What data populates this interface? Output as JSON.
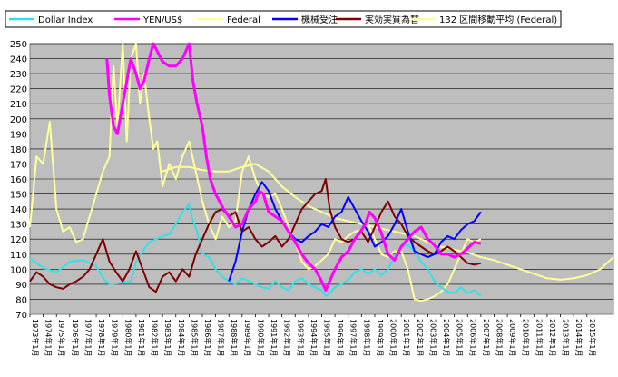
{
  "chart_data": {
    "type": "line",
    "title": "",
    "xlabel": "",
    "ylabel": "",
    "ylim": [
      70,
      250
    ],
    "xlim": [
      1973.0,
      2017.0
    ],
    "yticks": [
      70,
      80,
      90,
      100,
      110,
      120,
      130,
      140,
      150,
      160,
      170,
      180,
      190,
      200,
      210,
      220,
      230,
      240,
      250
    ],
    "x_tick_labels": [
      "1973年1月",
      "1974年1月",
      "1975年1月",
      "1976年1月",
      "1977年1月",
      "1978年1月",
      "1979年1月",
      "1980年1月",
      "1981年1月",
      "1982年1月",
      "1983年1月",
      "1984年1月",
      "1985年1月",
      "1986年1月",
      "1987年1月",
      "1988年1月",
      "1989年1月",
      "1990年1月",
      "1991年1月",
      "1992年1月",
      "1993年1月",
      "1994年1月",
      "1995年1月",
      "1996年1月",
      "1997年1月",
      "1998年1月",
      "1999年1月",
      "2000年1月",
      "2001年1月",
      "2002年1月",
      "2003年1月",
      "2004年1月",
      "2005年1月",
      "2006年1月",
      "2007年1月",
      "2008年1月",
      "2009年1月",
      "2010年1月",
      "2011年1月",
      "2012年1月",
      "2013年1月",
      "2014年1月",
      "2015年1月"
    ],
    "grid": true,
    "legend_position": "top",
    "plot_background": "#bebebe",
    "series": [
      {
        "name": "Dollar Index",
        "color": "#33e0e8",
        "width": 2,
        "x": [
          1973.0,
          1974.0,
          1975.0,
          1976.0,
          1977.0,
          1978.0,
          1978.6,
          1979.0,
          1980.0,
          1980.6,
          1981.0,
          1981.5,
          1982.0,
          1982.5,
          1983.0,
          1983.5,
          1984.0,
          1984.5,
          1985.0,
          1985.2,
          1985.6,
          1986.0,
          1986.5,
          1987.0,
          1987.5,
          1988.0,
          1988.5,
          1989.0,
          1989.5,
          1990.0,
          1990.5,
          1991.0,
          1991.5,
          1992.0,
          1992.5,
          1993.0,
          1993.5,
          1994.0,
          1994.5,
          1995.0,
          1995.3,
          1995.6,
          1996.0,
          1996.5,
          1997.0,
          1997.5,
          1998.0,
          1998.5,
          1999.0,
          1999.5,
          2000.0,
          2000.5,
          2001.0,
          2001.5,
          2002.0,
          2002.5,
          2003.0,
          2003.5,
          2004.0,
          2004.5,
          2005.0,
          2005.5,
          2006.0,
          2006.5,
          2007.0
        ],
        "y": [
          107,
          101,
          98,
          105,
          106,
          102,
          93,
          90,
          91,
          92,
          105,
          112,
          118,
          120,
          122,
          123,
          130,
          138,
          143,
          135,
          125,
          110,
          108,
          100,
          95,
          92,
          90,
          94,
          92,
          90,
          88,
          87,
          92,
          88,
          86,
          92,
          94,
          90,
          88,
          86,
          82,
          84,
          88,
          90,
          93,
          98,
          100,
          97,
          100,
          96,
          100,
          108,
          115,
          116,
          112,
          105,
          100,
          92,
          88,
          85,
          84,
          88,
          84,
          86,
          82
        ]
      },
      {
        "name": "YEN/US$",
        "color": "#ff00ff",
        "width": 3,
        "x": [
          1978.8,
          1979.0,
          1979.3,
          1979.6,
          1980.0,
          1980.3,
          1980.6,
          1981.0,
          1981.3,
          1981.6,
          1982.0,
          1982.3,
          1982.6,
          1983.0,
          1983.5,
          1984.0,
          1984.5,
          1985.0,
          1985.3,
          1985.6,
          1986.0,
          1986.3,
          1986.6,
          1987.0,
          1987.3,
          1987.6,
          1988.0,
          1988.5,
          1989.0,
          1989.5,
          1990.0,
          1990.3,
          1990.6,
          1991.0,
          1991.5,
          1992.0,
          1992.5,
          1993.0,
          1993.5,
          1994.0,
          1994.5,
          1995.0,
          1995.3,
          1995.5,
          1996.0,
          1996.5,
          1997.0,
          1997.5,
          1998.0,
          1998.3,
          1998.6,
          1999.0,
          1999.5,
          2000.0,
          2000.5,
          2001.0,
          2001.5,
          2002.0,
          2002.5,
          2003.0,
          2003.5,
          2004.0,
          2004.5,
          2005.0,
          2005.5,
          2006.0,
          2006.5,
          2007.0
        ],
        "y": [
          240,
          215,
          195,
          190,
          210,
          225,
          240,
          230,
          220,
          225,
          240,
          250,
          245,
          238,
          235,
          235,
          240,
          250,
          225,
          210,
          195,
          175,
          160,
          150,
          145,
          140,
          135,
          128,
          130,
          140,
          145,
          152,
          150,
          138,
          135,
          132,
          125,
          118,
          110,
          104,
          100,
          92,
          86,
          90,
          100,
          108,
          112,
          120,
          126,
          130,
          138,
          134,
          124,
          110,
          106,
          115,
          120,
          125,
          128,
          120,
          116,
          110,
          110,
          108,
          110,
          114,
          118,
          117
        ]
      },
      {
        "name": "Federal",
        "color": "#ffff99",
        "width": 2,
        "x": [
          1973.0,
          1973.5,
          1974.0,
          1974.5,
          1975.0,
          1975.5,
          1976.0,
          1976.5,
          1977.0,
          1977.5,
          1978.0,
          1978.5,
          1979.0,
          1979.3,
          1979.6,
          1980.0,
          1980.3,
          1980.6,
          1981.0,
          1981.3,
          1981.6,
          1982.0,
          1982.3,
          1982.6,
          1983.0,
          1983.5,
          1984.0,
          1984.5,
          1985.0,
          1985.5,
          1986.0,
          1986.5,
          1987.0,
          1987.5,
          1988.0,
          1988.5,
          1989.0,
          1989.5,
          1990.0,
          1990.5,
          1991.0,
          1991.5,
          1992.0,
          1992.5,
          1993.0,
          1993.5,
          1994.0,
          1994.5,
          1995.0,
          1995.5,
          1996.0,
          1996.5,
          1997.0,
          1997.5,
          1998.0,
          1998.5,
          1999.0,
          1999.5,
          2000.0,
          2000.5,
          2001.0,
          2001.5,
          2002.0,
          2002.5,
          2003.0,
          2003.5,
          2004.0,
          2004.5,
          2005.0,
          2005.5,
          2006.0,
          2006.5,
          2007.0
        ],
        "y": [
          128,
          175,
          170,
          198,
          140,
          125,
          128,
          118,
          120,
          135,
          150,
          165,
          175,
          235,
          195,
          250,
          185,
          240,
          250,
          210,
          230,
          200,
          180,
          185,
          155,
          170,
          160,
          175,
          185,
          165,
          145,
          130,
          120,
          135,
          128,
          132,
          165,
          175,
          160,
          150,
          148,
          150,
          140,
          128,
          118,
          105,
          100,
          102,
          106,
          110,
          120,
          118,
          122,
          125,
          126,
          130,
          120,
          110,
          108,
          112,
          112,
          100,
          80,
          79,
          80,
          82,
          85,
          90,
          100,
          110,
          120,
          118,
          120
        ]
      },
      {
        "name": "機械受注",
        "color": "#0000ff",
        "width": 2,
        "x": [
          1988.0,
          1988.5,
          1989.0,
          1989.5,
          1990.0,
          1990.5,
          1991.0,
          1991.5,
          1992.0,
          1992.5,
          1993.0,
          1993.5,
          1994.0,
          1994.5,
          1995.0,
          1995.5,
          1996.0,
          1996.5,
          1997.0,
          1997.5,
          1998.0,
          1998.5,
          1999.0,
          1999.5,
          2000.0,
          2000.5,
          2001.0,
          2001.5,
          2002.0,
          2002.5,
          2003.0,
          2003.5,
          2004.0,
          2004.5,
          2005.0,
          2005.5,
          2006.0,
          2006.5,
          2007.0
        ],
        "y": [
          92,
          105,
          125,
          140,
          150,
          158,
          152,
          140,
          132,
          125,
          120,
          118,
          122,
          125,
          130,
          128,
          135,
          138,
          148,
          140,
          132,
          125,
          115,
          118,
          122,
          130,
          140,
          125,
          112,
          110,
          108,
          110,
          118,
          122,
          120,
          126,
          130,
          132,
          138
        ]
      },
      {
        "name": "実効実質為替",
        "color": "#800000",
        "width": 2,
        "x": [
          1973.0,
          1973.5,
          1974.0,
          1974.5,
          1975.0,
          1975.5,
          1976.0,
          1976.5,
          1977.0,
          1977.5,
          1978.0,
          1978.5,
          1979.0,
          1979.5,
          1980.0,
          1980.5,
          1981.0,
          1981.5,
          1982.0,
          1982.5,
          1983.0,
          1983.5,
          1984.0,
          1984.5,
          1985.0,
          1985.5,
          1986.0,
          1986.5,
          1987.0,
          1987.5,
          1988.0,
          1988.5,
          1989.0,
          1989.5,
          1990.0,
          1990.5,
          1991.0,
          1991.5,
          1992.0,
          1992.5,
          1993.0,
          1993.5,
          1994.0,
          1994.5,
          1995.0,
          1995.3,
          1995.6,
          1996.0,
          1996.5,
          1997.0,
          1997.5,
          1998.0,
          1998.5,
          1999.0,
          1999.5,
          2000.0,
          2000.5,
          2001.0,
          2001.5,
          2002.0,
          2002.5,
          2003.0,
          2003.5,
          2004.0,
          2004.5,
          2005.0,
          2005.5,
          2006.0,
          2006.5,
          2007.0
        ],
        "y": [
          92,
          98,
          95,
          90,
          88,
          87,
          90,
          92,
          95,
          100,
          110,
          120,
          105,
          98,
          92,
          100,
          112,
          100,
          88,
          85,
          95,
          98,
          92,
          100,
          95,
          110,
          120,
          130,
          138,
          140,
          135,
          138,
          125,
          128,
          120,
          115,
          118,
          122,
          115,
          120,
          130,
          140,
          145,
          150,
          152,
          160,
          140,
          128,
          120,
          118,
          120,
          125,
          118,
          128,
          138,
          145,
          135,
          130,
          122,
          118,
          115,
          112,
          110,
          112,
          115,
          112,
          108,
          104,
          103,
          104
        ]
      },
      {
        "name": "132 区間移動平均 (Federal)",
        "color": "#ffff99",
        "width": 2,
        "x": [
          1983.0,
          1984.0,
          1985.0,
          1986.0,
          1987.0,
          1988.0,
          1989.0,
          1990.0,
          1991.0,
          1992.0,
          1993.0,
          1994.0,
          1995.0,
          1996.0,
          1997.0,
          1998.0,
          1999.0,
          2000.0,
          2001.0,
          2002.0,
          2003.0,
          2004.0,
          2005.0,
          2006.0,
          2007.0,
          2008.0,
          2009.0,
          2010.0,
          2011.0,
          2012.0,
          2013.0,
          2014.0,
          2015.0,
          2016.0,
          2017.0
        ],
        "y": [
          165,
          168,
          168,
          166,
          165,
          165,
          168,
          170,
          165,
          155,
          148,
          142,
          138,
          134,
          132,
          130,
          128,
          126,
          124,
          122,
          118,
          115,
          113,
          111,
          108,
          106,
          103,
          100,
          97,
          94,
          93,
          94,
          96,
          100,
          108
        ]
      }
    ]
  }
}
